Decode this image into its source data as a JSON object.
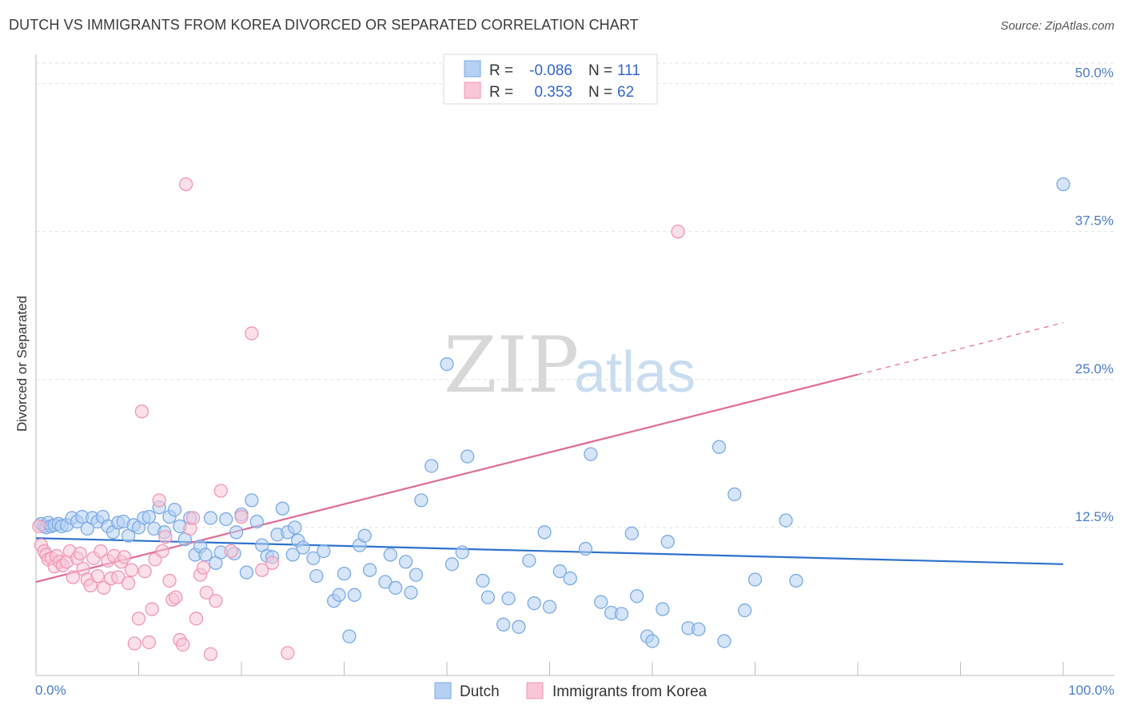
{
  "header": {
    "title": "DUTCH VS IMMIGRANTS FROM KOREA DIVORCED OR SEPARATED CORRELATION CHART",
    "source": "Source: ZipAtlas.com"
  },
  "colors": {
    "dutch": "#7aaae6",
    "dutch_fill": "#b5d0f3",
    "dutch_line": "#2e72cc",
    "korea": "#f096b4",
    "korea_fill": "#f8c6d6",
    "korea_line": "#e06a96",
    "axis_text": "#4a7cc8"
  },
  "legend": {
    "rows": [
      {
        "r_label": "R =",
        "r_value": "-0.086",
        "n_label": "N =",
        "n_value": "111"
      },
      {
        "r_label": "R =",
        "r_value": "0.353",
        "n_label": "N =",
        "n_value": "62"
      }
    ]
  },
  "bottom_legend": {
    "dutch": "Dutch",
    "korea": "Immigrants from Korea"
  },
  "watermark": {
    "zip": "ZIP",
    "atlas": "atlas"
  },
  "chart_data": {
    "type": "scatter",
    "title": "DUTCH VS IMMIGRANTS FROM KOREA DIVORCED OR SEPARATED CORRELATION CHART",
    "xlabel": "",
    "ylabel": "Divorced or Separated",
    "xlim": [
      0,
      100
    ],
    "ylim": [
      0,
      52
    ],
    "x_tick_labels": [
      "0.0%",
      "100.0%"
    ],
    "y_ticks": [
      12.5,
      25.0,
      37.5,
      50.0
    ],
    "y_tick_labels": [
      "12.5%",
      "25.0%",
      "37.5%",
      "50.0%"
    ],
    "grid": "horizontal dashed",
    "legend_position": "top-center",
    "series": [
      {
        "name": "Dutch",
        "trend": {
          "x": [
            0,
            100
          ],
          "y": [
            11.6,
            9.4
          ]
        },
        "points": [
          [
            0.5,
            12.8
          ],
          [
            0.8,
            12.6
          ],
          [
            1.0,
            12.5
          ],
          [
            1.2,
            12.9
          ],
          [
            1.5,
            12.6
          ],
          [
            1.8,
            12.7
          ],
          [
            2.2,
            12.8
          ],
          [
            2.5,
            12.6
          ],
          [
            3.0,
            12.7
          ],
          [
            3.5,
            13.3
          ],
          [
            4.0,
            13.0
          ],
          [
            4.5,
            13.4
          ],
          [
            5.0,
            12.4
          ],
          [
            5.5,
            13.3
          ],
          [
            6.0,
            13.0
          ],
          [
            6.5,
            13.4
          ],
          [
            7.0,
            12.6
          ],
          [
            7.5,
            12.1
          ],
          [
            8.0,
            12.9
          ],
          [
            8.5,
            13.0
          ],
          [
            9.0,
            11.8
          ],
          [
            9.5,
            12.7
          ],
          [
            10.0,
            12.5
          ],
          [
            10.5,
            13.3
          ],
          [
            11.0,
            13.4
          ],
          [
            11.5,
            12.4
          ],
          [
            12.0,
            14.2
          ],
          [
            12.5,
            12.1
          ],
          [
            13.0,
            13.4
          ],
          [
            13.5,
            14.0
          ],
          [
            14.0,
            12.6
          ],
          [
            14.5,
            11.5
          ],
          [
            15.0,
            13.3
          ],
          [
            15.5,
            10.2
          ],
          [
            16.0,
            10.9
          ],
          [
            16.5,
            10.2
          ],
          [
            17.0,
            13.3
          ],
          [
            17.5,
            9.5
          ],
          [
            18.0,
            10.4
          ],
          [
            18.5,
            13.2
          ],
          [
            19.3,
            10.3
          ],
          [
            19.5,
            12.1
          ],
          [
            20.0,
            13.6
          ],
          [
            20.5,
            8.7
          ],
          [
            21.0,
            14.8
          ],
          [
            21.5,
            13.0
          ],
          [
            22.0,
            11.0
          ],
          [
            22.5,
            10.1
          ],
          [
            23.0,
            10.0
          ],
          [
            23.5,
            11.9
          ],
          [
            24.0,
            14.1
          ],
          [
            24.5,
            12.1
          ],
          [
            25.0,
            10.2
          ],
          [
            25.2,
            12.5
          ],
          [
            25.5,
            11.4
          ],
          [
            26.0,
            10.8
          ],
          [
            27.0,
            9.9
          ],
          [
            27.3,
            8.4
          ],
          [
            28.0,
            10.5
          ],
          [
            29.0,
            6.3
          ],
          [
            29.5,
            6.8
          ],
          [
            30.0,
            8.6
          ],
          [
            30.5,
            3.3
          ],
          [
            31.0,
            6.8
          ],
          [
            31.5,
            11.0
          ],
          [
            32.0,
            11.8
          ],
          [
            32.5,
            8.9
          ],
          [
            34.0,
            7.9
          ],
          [
            34.5,
            10.2
          ],
          [
            35.0,
            7.4
          ],
          [
            36.0,
            9.6
          ],
          [
            36.5,
            7.0
          ],
          [
            37.0,
            8.5
          ],
          [
            37.5,
            14.8
          ],
          [
            38.5,
            17.7
          ],
          [
            40.0,
            26.3
          ],
          [
            40.5,
            9.4
          ],
          [
            41.5,
            10.4
          ],
          [
            42.0,
            18.5
          ],
          [
            43.5,
            8.0
          ],
          [
            44.0,
            6.6
          ],
          [
            45.5,
            4.3
          ],
          [
            46.0,
            6.5
          ],
          [
            47.0,
            4.1
          ],
          [
            48.0,
            9.7
          ],
          [
            48.5,
            6.1
          ],
          [
            49.5,
            12.1
          ],
          [
            50.0,
            5.8
          ],
          [
            51.0,
            8.8
          ],
          [
            52.0,
            8.2
          ],
          [
            53.5,
            10.7
          ],
          [
            54.0,
            18.7
          ],
          [
            55.0,
            6.2
          ],
          [
            56.0,
            5.3
          ],
          [
            57.0,
            5.2
          ],
          [
            58.0,
            12.0
          ],
          [
            58.5,
            6.7
          ],
          [
            59.5,
            3.3
          ],
          [
            60.0,
            2.9
          ],
          [
            61.0,
            5.6
          ],
          [
            61.5,
            11.3
          ],
          [
            63.5,
            4.0
          ],
          [
            64.5,
            3.9
          ],
          [
            66.5,
            19.3
          ],
          [
            67.0,
            2.9
          ],
          [
            68.0,
            15.3
          ],
          [
            69.0,
            5.5
          ],
          [
            70.0,
            8.1
          ],
          [
            73.0,
            13.1
          ],
          [
            74.0,
            8.0
          ],
          [
            100.0,
            41.5
          ]
        ]
      },
      {
        "name": "Immigrants from Korea",
        "trend": {
          "x": [
            0,
            100
          ],
          "y": [
            7.9,
            29.8
          ]
        },
        "points": [
          [
            0.3,
            12.6
          ],
          [
            0.5,
            11.0
          ],
          [
            0.8,
            10.5
          ],
          [
            1.0,
            10.2
          ],
          [
            1.2,
            9.8
          ],
          [
            1.5,
            9.9
          ],
          [
            1.8,
            9.2
          ],
          [
            2.0,
            10.1
          ],
          [
            2.3,
            9.6
          ],
          [
            2.6,
            9.3
          ],
          [
            3.0,
            9.6
          ],
          [
            3.3,
            10.5
          ],
          [
            3.6,
            8.3
          ],
          [
            4.0,
            9.9
          ],
          [
            4.3,
            10.3
          ],
          [
            4.6,
            9.0
          ],
          [
            5.0,
            8.1
          ],
          [
            5.3,
            7.6
          ],
          [
            5.6,
            9.9
          ],
          [
            6.0,
            8.4
          ],
          [
            6.3,
            10.5
          ],
          [
            6.6,
            7.4
          ],
          [
            7.0,
            9.7
          ],
          [
            7.3,
            8.2
          ],
          [
            7.6,
            10.1
          ],
          [
            8.0,
            8.3
          ],
          [
            8.3,
            9.6
          ],
          [
            8.6,
            10.0
          ],
          [
            9.0,
            7.8
          ],
          [
            9.3,
            8.9
          ],
          [
            9.6,
            2.7
          ],
          [
            10.0,
            4.8
          ],
          [
            10.3,
            22.3
          ],
          [
            10.6,
            8.8
          ],
          [
            11.0,
            2.8
          ],
          [
            11.3,
            5.6
          ],
          [
            11.6,
            9.8
          ],
          [
            12.0,
            14.8
          ],
          [
            12.3,
            10.5
          ],
          [
            12.6,
            11.7
          ],
          [
            13.0,
            8.0
          ],
          [
            13.3,
            6.4
          ],
          [
            13.6,
            6.6
          ],
          [
            14.0,
            3.0
          ],
          [
            14.3,
            2.6
          ],
          [
            14.6,
            41.5
          ],
          [
            15.0,
            12.4
          ],
          [
            15.3,
            13.3
          ],
          [
            15.6,
            4.8
          ],
          [
            16.0,
            8.5
          ],
          [
            16.3,
            9.1
          ],
          [
            16.6,
            7.0
          ],
          [
            17.0,
            1.8
          ],
          [
            17.5,
            6.3
          ],
          [
            18.0,
            15.6
          ],
          [
            19.0,
            10.5
          ],
          [
            20.0,
            13.4
          ],
          [
            21.0,
            28.9
          ],
          [
            22.0,
            8.9
          ],
          [
            23.0,
            9.5
          ],
          [
            24.5,
            1.9
          ],
          [
            62.5,
            37.5
          ]
        ]
      }
    ]
  }
}
